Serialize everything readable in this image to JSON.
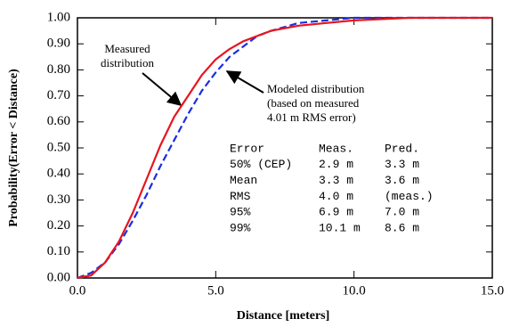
{
  "chart_data": {
    "type": "line",
    "x_label": "Distance [meters]",
    "y_label": "Probability(Error < Distance)",
    "x": [
      0,
      0.5,
      1,
      1.5,
      2,
      2.5,
      3,
      3.5,
      4,
      4.5,
      5,
      5.5,
      6,
      6.5,
      7,
      8,
      9,
      10,
      12,
      15
    ],
    "series": [
      {
        "name": "Measured distribution",
        "color": "#e8141e",
        "dash": false,
        "values": [
          0,
          0.01,
          0.06,
          0.14,
          0.25,
          0.38,
          0.51,
          0.62,
          0.7,
          0.78,
          0.84,
          0.88,
          0.91,
          0.93,
          0.95,
          0.97,
          0.98,
          0.99,
          1.0,
          1.0
        ]
      },
      {
        "name": "Modeled distribution",
        "color": "#1a2ee0",
        "dash": true,
        "values": [
          0,
          0.02,
          0.06,
          0.13,
          0.22,
          0.32,
          0.43,
          0.53,
          0.63,
          0.72,
          0.79,
          0.85,
          0.89,
          0.93,
          0.95,
          0.98,
          0.99,
          1.0,
          1.0,
          1.0
        ]
      }
    ],
    "xlim": [
      0,
      15
    ],
    "ylim": [
      0,
      1
    ],
    "xticks": [
      {
        "value": 0,
        "label": "0.0"
      },
      {
        "value": 5,
        "label": "5.0"
      },
      {
        "value": 10,
        "label": "10.0"
      },
      {
        "value": 15,
        "label": "15.0"
      }
    ],
    "yticks": [
      {
        "value": 0,
        "label": "0.00"
      },
      {
        "value": 0.1,
        "label": "0.10"
      },
      {
        "value": 0.2,
        "label": "0.20"
      },
      {
        "value": 0.3,
        "label": "0.30"
      },
      {
        "value": 0.4,
        "label": "0.40"
      },
      {
        "value": 0.5,
        "label": "0.50"
      },
      {
        "value": 0.6,
        "label": "0.60"
      },
      {
        "value": 0.7,
        "label": "0.70"
      },
      {
        "value": 0.8,
        "label": "0.80"
      },
      {
        "value": 0.9,
        "label": "0.90"
      },
      {
        "value": 1,
        "label": "1.00"
      }
    ],
    "annotations": [
      "Measured",
      "distribution",
      "Modeled distribution",
      "(based on measured",
      "4.01 m RMS error)"
    ],
    "stats_table": {
      "header": [
        "Error",
        "Meas.",
        "Pred."
      ],
      "rows": [
        [
          "50% (CEP)",
          "2.9 m",
          "3.3 m"
        ],
        [
          "Mean",
          "3.3 m",
          "3.6 m"
        ],
        [
          "RMS",
          "4.0 m",
          "(meas.)"
        ],
        [
          "95%",
          "6.9 m",
          "7.0 m"
        ],
        [
          "99%",
          "10.1 m",
          "8.6 m"
        ]
      ]
    }
  }
}
